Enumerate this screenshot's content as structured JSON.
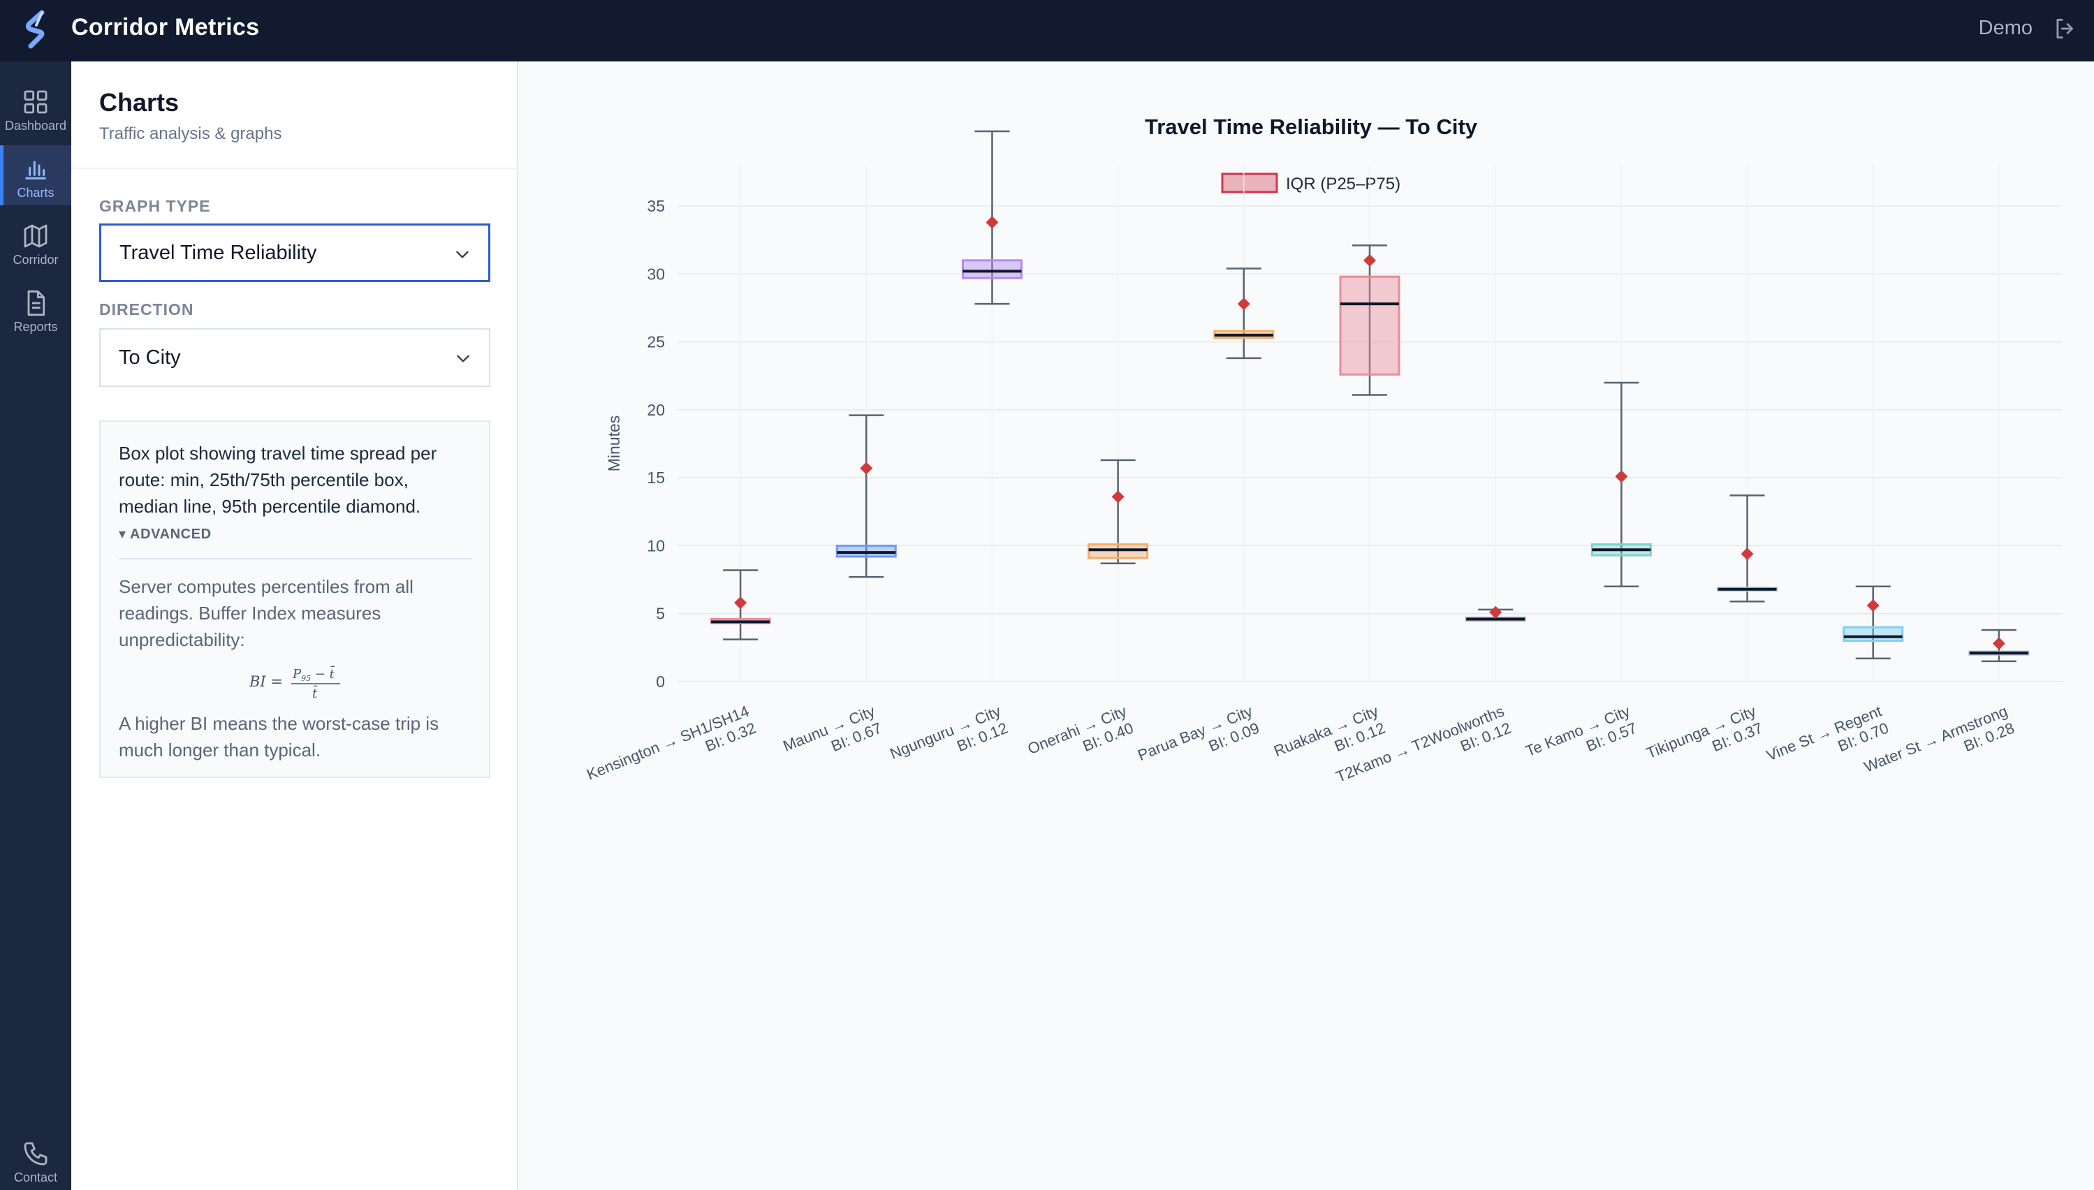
{
  "app": {
    "title": "Corridor Metrics",
    "user": "Demo"
  },
  "rail": [
    {
      "label": "Dashboard",
      "icon": "dashboard-icon"
    },
    {
      "label": "Charts",
      "icon": "charts-icon",
      "active": true
    },
    {
      "label": "Corridor",
      "icon": "map-icon"
    },
    {
      "label": "Reports",
      "icon": "reports-icon"
    },
    {
      "label": "Contact",
      "icon": "phone-icon"
    }
  ],
  "panel": {
    "title": "Charts",
    "subtitle": "Traffic analysis & graphs",
    "graph_type_label": "GRAPH TYPE",
    "graph_type_value": "Travel Time Reliability",
    "direction_label": "DIRECTION",
    "direction_value": "To City",
    "info_text": "Box plot showing travel time spread per route: min, 25th/75th percentile box, median line, 95th percentile diamond.",
    "advanced_label": "▾ ADVANCED",
    "server_text": "Server computes percentiles from all readings. Buffer Index measures unpredictability:",
    "formula": "BI = (P95 − t̄) / t̄",
    "higher_text": "A higher BI means the worst-case trip is much longer than typical."
  },
  "chart_data": {
    "type": "box",
    "title": "Travel Time Reliability — To City",
    "legend": "IQR (P25–P75)",
    "ylabel": "Minutes",
    "ylim": [
      0,
      35
    ],
    "yticks": [
      0,
      5,
      10,
      15,
      20,
      25,
      30,
      35
    ],
    "categories": [
      {
        "route": "Kensington → SH1/SH14",
        "bi": "BI: 0.32",
        "min": 3.1,
        "p25": 4.3,
        "median": 4.4,
        "p75": 4.6,
        "max": 8.2,
        "p95": 5.8,
        "color": "#f28b9a"
      },
      {
        "route": "Maunu → City",
        "bi": "BI: 0.67",
        "min": 7.7,
        "p25": 9.2,
        "median": 9.5,
        "p75": 10.0,
        "max": 19.6,
        "p95": 15.7,
        "color": "#6f9bf5"
      },
      {
        "route": "Ngunguru → City",
        "bi": "BI: 0.12",
        "min": 27.8,
        "p25": 29.7,
        "median": 30.2,
        "p75": 31.0,
        "max": 40.5,
        "p95": 33.8,
        "color": "#b28af2"
      },
      {
        "route": "Onerahi → City",
        "bi": "BI: 0.40",
        "min": 8.7,
        "p25": 9.1,
        "median": 9.7,
        "p75": 10.1,
        "max": 16.3,
        "p95": 13.6,
        "color": "#f5ad6b"
      },
      {
        "route": "Parua Bay → City",
        "bi": "BI: 0.09",
        "min": 23.8,
        "p25": 25.3,
        "median": 25.5,
        "p75": 25.8,
        "max": 30.4,
        "p95": 27.8,
        "color": "#f5b361"
      },
      {
        "route": "Ruakaka → City",
        "bi": "BI: 0.12",
        "min": 21.1,
        "p25": 22.6,
        "median": 27.8,
        "p75": 29.8,
        "max": 32.1,
        "p95": 31.0,
        "color": "#e88d99"
      },
      {
        "route": "T2Kamo → T2Woolworths",
        "bi": "BI: 0.12",
        "min": 4.5,
        "p25": 4.5,
        "median": 4.6,
        "p75": 4.7,
        "max": 5.3,
        "p95": 5.1,
        "color": "#aab2c3"
      },
      {
        "route": "Te Kamo → City",
        "bi": "BI: 0.57",
        "min": 7.0,
        "p25": 9.3,
        "median": 9.7,
        "p75": 10.1,
        "max": 22.0,
        "p95": 15.1,
        "color": "#7ed4cb"
      },
      {
        "route": "Tikipunga → City",
        "bi": "BI: 0.37",
        "min": 5.9,
        "p25": 6.7,
        "median": 6.8,
        "p75": 6.9,
        "max": 13.7,
        "p95": 9.4,
        "color": "#9be0d6"
      },
      {
        "route": "Vine St → Regent",
        "bi": "BI: 0.70",
        "min": 1.7,
        "p25": 3.0,
        "median": 3.3,
        "p75": 4.0,
        "max": 7.0,
        "p95": 5.6,
        "color": "#7fd1ee"
      },
      {
        "route": "Water St → Armstrong",
        "bi": "BI: 0.28",
        "min": 1.5,
        "p25": 2.0,
        "median": 2.1,
        "p75": 2.2,
        "max": 3.8,
        "p95": 2.8,
        "color": "#a9b4c8"
      }
    ],
    "grid": true,
    "legend_position": "top-center"
  }
}
